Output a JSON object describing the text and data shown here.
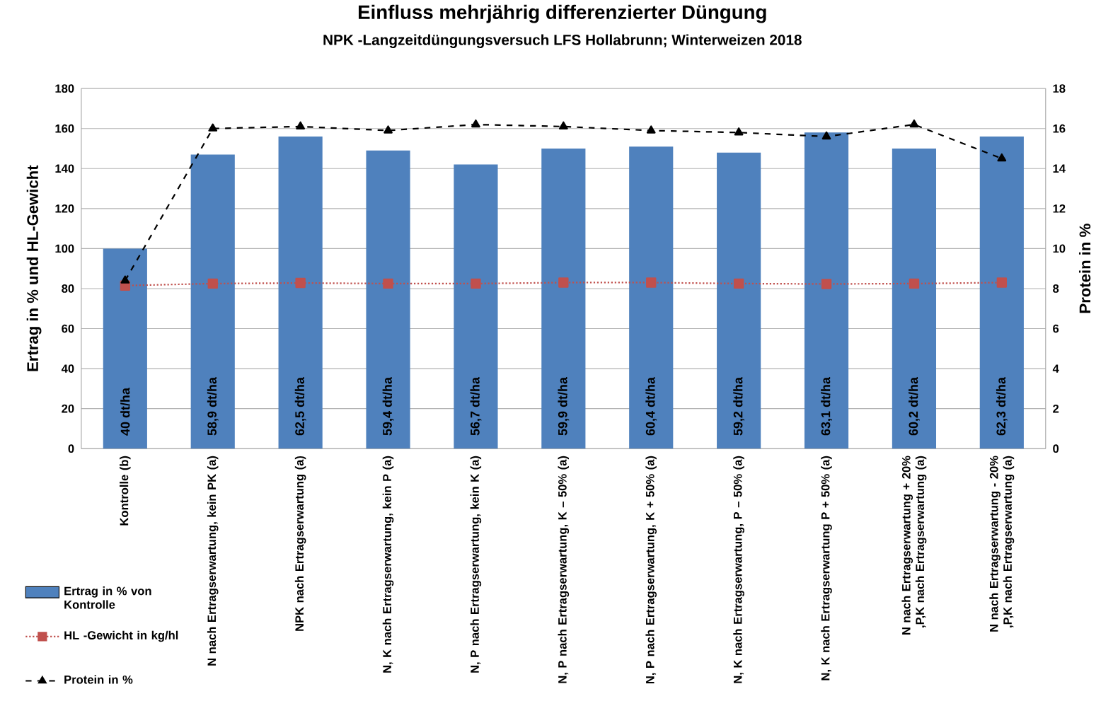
{
  "chart_data": {
    "type": "bar",
    "title": "Einfluss mehrjährig differenzierter Düngung",
    "subtitle": "NPK -Langzeitdüngungsversuch LFS Hollabrunn; Winterweizen 2018",
    "ylabel": "Ertrag in % und HL-Gewicht",
    "y2label": "Protein in %",
    "categories": [
      "Kontrolle (b)",
      "N nach Ertragserwartung, kein PK (a)",
      "NPK nach Ertragserwartung (a)",
      "N, K nach Ertragserwartung, kein P  (a)",
      "N, P nach Ertragserwartung, kein K (a)",
      "N, P nach Ertragserwartung, K – 50% (a)",
      "N, P nach Ertragserwartung, K + 50% (a)",
      "N, K nach Ertragserwartung, P – 50% (a)",
      "N, K nach Ertragserwartung P + 50% (a)",
      "N nach Ertragserwartung + 20% ,P,K nach Ertragserwartung  (a)",
      "N nach Ertragserwartung - 20% ,P,K nach Ertragserwartung (a)"
    ],
    "series": [
      {
        "name": "Ertrag in % von Kontrolle",
        "type": "bar",
        "color": "#4f81bd",
        "values": [
          100,
          147,
          156,
          149,
          142,
          150,
          151,
          148,
          158,
          150,
          156
        ]
      },
      {
        "name": "HL -Gewicht in kg/hl",
        "type": "line",
        "color": "#c0504d",
        "marker": "square",
        "line_style": "dotted",
        "values": [
          81.5,
          82.5,
          82.8,
          82.5,
          82.5,
          83,
          83,
          82.5,
          82.3,
          82.5,
          83
        ]
      },
      {
        "name": "Protein in %",
        "type": "line",
        "axis": "y2",
        "color": "#000000",
        "marker": "triangle",
        "line_style": "dashed",
        "values": [
          8.4,
          16.0,
          16.1,
          15.9,
          16.2,
          16.1,
          15.9,
          15.8,
          15.6,
          16.2,
          14.5
        ]
      }
    ],
    "annotations": [
      "40 dt/ha",
      "58,9 dt/ha",
      "62,5 dt/ha",
      "59,4 dt/ha",
      "56,7 dt/ha",
      "59,9 dt/ha",
      "60,4 dt/ha",
      "59,2 dt/ha",
      "63,1 dt/ha",
      "60,2 dt/ha",
      "62,3 dt/ha"
    ],
    "ylim": [
      0,
      180
    ],
    "yticks": [
      0,
      20,
      40,
      60,
      80,
      100,
      120,
      140,
      160,
      180
    ],
    "y2lim": [
      0,
      18
    ],
    "y2ticks": [
      0,
      2,
      4,
      6,
      8,
      10,
      12,
      14,
      16,
      18
    ],
    "grid": "y",
    "legend": "bottom left"
  }
}
